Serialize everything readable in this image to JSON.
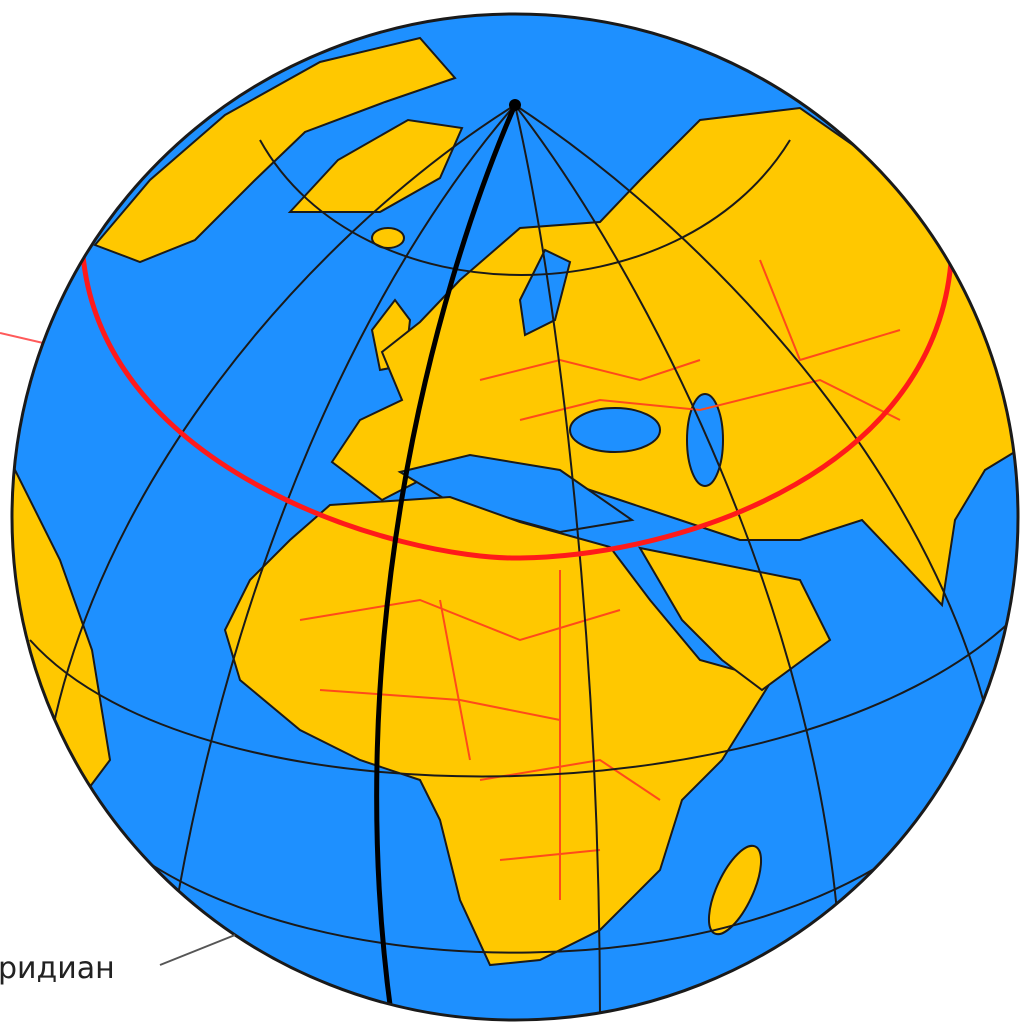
{
  "labels": {
    "meridian": "ридиан"
  }
}
